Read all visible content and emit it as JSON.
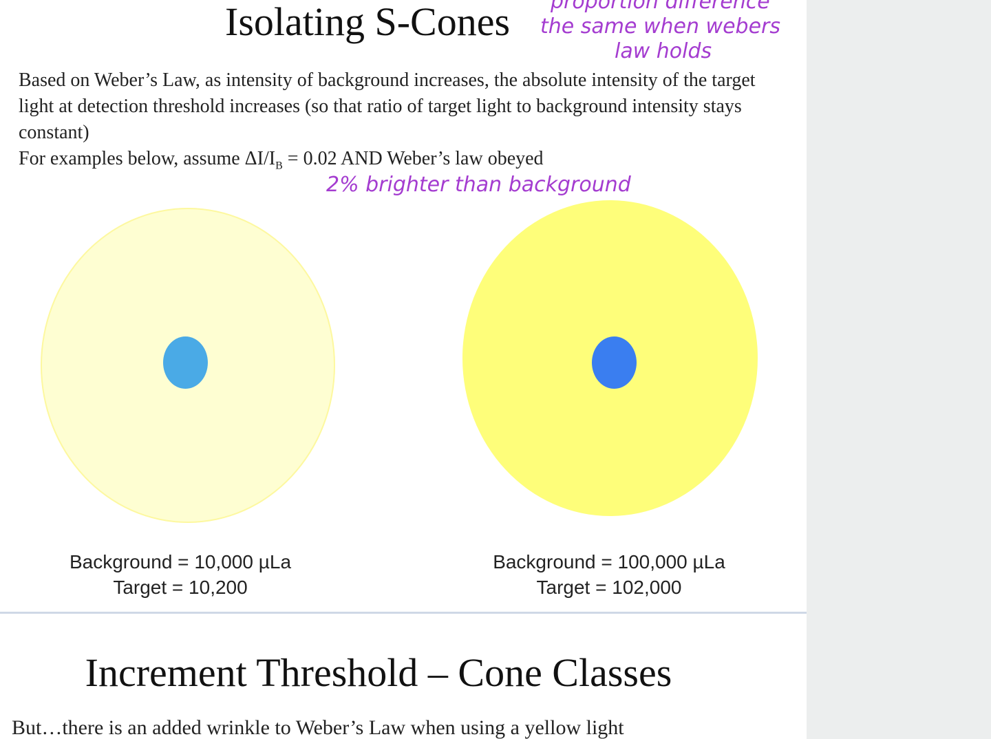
{
  "slide1": {
    "title": "Isolating S-Cones",
    "paragraph": "Based on Weber’s Law, as intensity of background increases, the absolute intensity of the target light at detection threshold increases (so that ratio of target light to background intensity stays constant)",
    "assume_prefix": "For examples below, assume ΔI/I",
    "assume_sub": "B",
    "assume_suffix": " = 0.02 AND Weber’s law obeyed",
    "annotations": {
      "top_line1": "proportion difference",
      "top_line2": "the same when webers",
      "top_line3": "law holds",
      "middle": "2% brighter than background"
    },
    "left": {
      "background": "Background = 10,000 µLa",
      "target": "Target = 10,200",
      "bg_color": "#fefed2",
      "target_color": "#4aaae6"
    },
    "right": {
      "background": "Background = 100,000 µLa",
      "target": "Target = 102,000",
      "bg_color": "#fefe7a",
      "target_color": "#3a7ef0"
    }
  },
  "slide2": {
    "title": "Increment Threshold – Cone Classes",
    "paragraph": "But…there is an added wrinkle to Weber’s Law when using a yellow light"
  }
}
